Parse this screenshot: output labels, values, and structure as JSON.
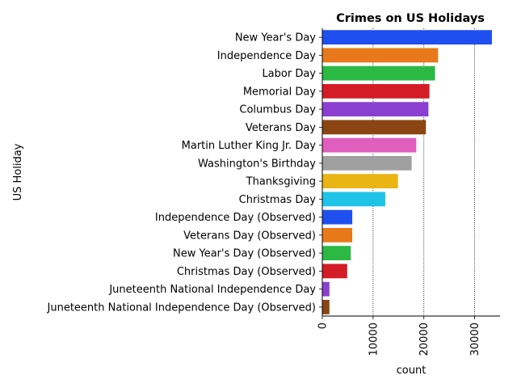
{
  "chart_data": {
    "type": "bar",
    "orientation": "horizontal",
    "title": "Crimes on US Holidays",
    "xlabel": "count",
    "ylabel": "US Holiday",
    "xlim": [
      0,
      35000
    ],
    "xticks": [
      0,
      10000,
      20000,
      30000
    ],
    "xtick_labels": [
      "0",
      "10000",
      "20000",
      "30000"
    ],
    "grid": "vertical-dotted",
    "categories": [
      "New Year's Day",
      "Independence Day",
      "Labor Day",
      "Memorial Day",
      "Columbus Day",
      "Veterans Day",
      "Martin Luther King Jr. Day",
      "Washington's Birthday",
      "Thanksgiving",
      "Christmas Day",
      "Independence Day (Observed)",
      "Veterans Day (Observed)",
      "New Year's Day (Observed)",
      "Christmas Day (Observed)",
      "Juneteenth National Independence Day",
      "Juneteenth National Independence Day (Observed)"
    ],
    "values": [
      33400,
      22800,
      22200,
      21100,
      20900,
      20400,
      18500,
      17600,
      14900,
      12400,
      5900,
      5900,
      5600,
      4900,
      1400,
      1400
    ],
    "colors": [
      "#1f4fee",
      "#e8791a",
      "#2cb943",
      "#d41c27",
      "#8a3fd1",
      "#8b4513",
      "#e05ebd",
      "#a0a0a0",
      "#e8b514",
      "#1fc3e6",
      "#1f4fee",
      "#e8791a",
      "#2cb943",
      "#d41c27",
      "#8a3fd1",
      "#8b4513"
    ]
  }
}
